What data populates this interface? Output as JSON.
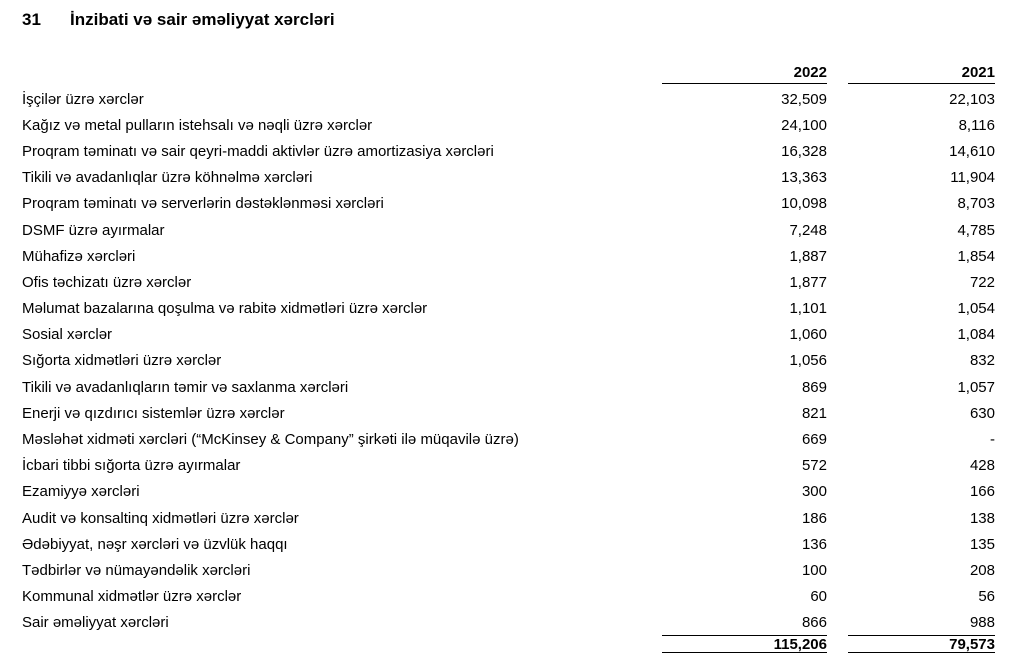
{
  "heading": {
    "number": "31",
    "title": "İnzibati və sair əməliyyat xərcləri"
  },
  "table": {
    "columns": [
      "2022",
      "2021"
    ],
    "rows": [
      {
        "label": "İşçilər üzrə xərclər",
        "y2022": "32,509",
        "y2021": "22,103"
      },
      {
        "label": "Kağız və metal pulların istehsalı və nəqli üzrə xərclər",
        "y2022": "24,100",
        "y2021": "8,116"
      },
      {
        "label": "Proqram təminatı və sair qeyri-maddi aktivlər üzrə amortizasiya xərcləri",
        "y2022": "16,328",
        "y2021": "14,610"
      },
      {
        "label": "Tikili və avadanlıqlar üzrə köhnəlmə xərcləri",
        "y2022": "13,363",
        "y2021": "11,904"
      },
      {
        "label": "Proqram təminatı və serverlərin dəstəklənməsi xərcləri",
        "y2022": "10,098",
        "y2021": "8,703"
      },
      {
        "label": "DSMF üzrə ayırmalar",
        "y2022": "7,248",
        "y2021": "4,785"
      },
      {
        "label": "Mühafizə xərcləri",
        "y2022": "1,887",
        "y2021": "1,854"
      },
      {
        "label": "Ofis təchizatı üzrə xərclər",
        "y2022": "1,877",
        "y2021": "722"
      },
      {
        "label": "Məlumat bazalarına qoşulma və rabitə xidmətləri üzrə xərclər",
        "y2022": "1,101",
        "y2021": "1,054"
      },
      {
        "label": "Sosial xərclər",
        "y2022": "1,060",
        "y2021": "1,084"
      },
      {
        "label": "Sığorta xidmətləri üzrə xərclər",
        "y2022": "1,056",
        "y2021": "832"
      },
      {
        "label": "Tikili və avadanlıqların təmir və  saxlanma xərcləri",
        "y2022": "869",
        "y2021": "1,057"
      },
      {
        "label": "Enerji və qızdırıcı sistemlər üzrə xərclər",
        "y2022": "821",
        "y2021": "630"
      },
      {
        "label": "Məsləhət xidməti xərcləri (“McKinsey & Company” şirkəti ilə müqavilə üzrə)",
        "y2022": "669",
        "y2021": "-"
      },
      {
        "label": "İcbari tibbi sığorta üzrə ayırmalar",
        "y2022": "572",
        "y2021": "428"
      },
      {
        "label": "Ezamiyyə xərcləri",
        "y2022": "300",
        "y2021": "166"
      },
      {
        "label": "Audit və konsaltinq xidmətləri üzrə xərclər",
        "y2022": "186",
        "y2021": "138"
      },
      {
        "label": "Ədəbiyyat, nəşr xərcləri və üzvlük haqqı",
        "y2022": "136",
        "y2021": "135"
      },
      {
        "label": "Tədbirlər və nümayəndəlik xərcləri",
        "y2022": "100",
        "y2021": "208"
      },
      {
        "label": "Kommunal xidmətlər üzrə xərclər",
        "y2022": "60",
        "y2021": "56"
      },
      {
        "label": "Sair əməliyyat xərcləri",
        "y2022": "866",
        "y2021": "988"
      }
    ],
    "total": {
      "y2022": "115,206",
      "y2021": "79,573"
    }
  }
}
